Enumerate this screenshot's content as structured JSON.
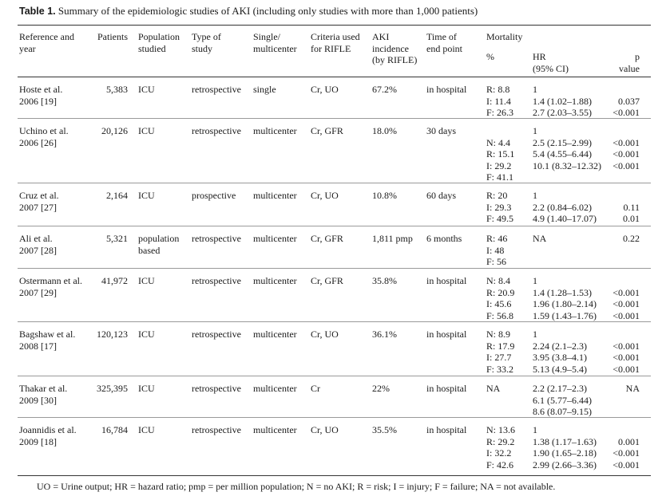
{
  "caption": {
    "label": "Table 1.",
    "text": "Summary of the epidemiologic studies of AKI (including only studies with more than 1,000 patients)"
  },
  "header": {
    "reference": [
      "Reference and",
      "year"
    ],
    "patients": [
      "Patients"
    ],
    "population": [
      "Population",
      "studied"
    ],
    "type": [
      "Type of",
      "study"
    ],
    "single": [
      "Single/",
      "multicenter"
    ],
    "criteria": [
      "Criteria used",
      "for RIFLE"
    ],
    "incidence": [
      "AKI",
      "incidence",
      "(by RIFLE)"
    ],
    "endpoint": [
      "Time of",
      "end point"
    ],
    "mortality": [
      "Mortality"
    ],
    "pct": [
      "%"
    ],
    "hr": [
      "HR",
      "(95% CI)"
    ],
    "pval": [
      "p",
      "value"
    ]
  },
  "rows": [
    {
      "reference": [
        "Hoste et al.",
        "2006 [19]"
      ],
      "patients": [
        "5,383"
      ],
      "population": [
        "ICU"
      ],
      "type": [
        "retrospective"
      ],
      "single": [
        "single"
      ],
      "criteria": [
        "Cr, UO"
      ],
      "incidence": [
        "67.2%"
      ],
      "endpoint": [
        "in hospital"
      ],
      "pct": [
        "R: 8.8",
        "I: 11.4",
        "F: 26.3"
      ],
      "hr": [
        "1",
        "1.4 (1.02–1.88)",
        "2.7 (2.03–3.55)"
      ],
      "pval": [
        "",
        "0.037",
        "<0.001"
      ]
    },
    {
      "reference": [
        "Uchino et al.",
        "2006 [26]"
      ],
      "patients": [
        "20,126"
      ],
      "population": [
        "ICU"
      ],
      "type": [
        "retrospective"
      ],
      "single": [
        "multicenter"
      ],
      "criteria": [
        "Cr, GFR"
      ],
      "incidence": [
        "18.0%"
      ],
      "endpoint": [
        "30 days"
      ],
      "pct": [
        "",
        "N: 4.4",
        "R: 15.1",
        "I: 29.2",
        "F:  41.1"
      ],
      "hr": [
        "1",
        "2.5 (2.15–2.99)",
        "5.4 (4.55–6.44)",
        "10.1 (8.32–12.32)"
      ],
      "pval": [
        "",
        "<0.001",
        "<0.001",
        "<0.001"
      ]
    },
    {
      "reference": [
        "Cruz et al.",
        "2007 [27]"
      ],
      "patients": [
        "2,164"
      ],
      "population": [
        "ICU"
      ],
      "type": [
        "prospective"
      ],
      "single": [
        "multicenter"
      ],
      "criteria": [
        "Cr, UO"
      ],
      "incidence": [
        "10.8%"
      ],
      "endpoint": [
        "60 days"
      ],
      "pct": [
        "R: 20",
        "I: 29.3",
        "F: 49.5"
      ],
      "hr": [
        "1",
        "2.2 (0.84–6.02)",
        "4.9 (1.40–17.07)"
      ],
      "pval": [
        "",
        "0.11",
        "0.01"
      ]
    },
    {
      "reference": [
        "Ali et al.",
        "2007 [28]"
      ],
      "patients": [
        "5,321"
      ],
      "population": [
        "population",
        "based"
      ],
      "type": [
        "retrospective"
      ],
      "single": [
        "multicenter"
      ],
      "criteria": [
        "Cr, GFR"
      ],
      "incidence": [
        "1,811 pmp"
      ],
      "endpoint": [
        "6 months"
      ],
      "pct": [
        "R: 46",
        "I: 48",
        "F: 56"
      ],
      "hr": [
        "NA"
      ],
      "pval": [
        "0.22"
      ]
    },
    {
      "reference": [
        "Ostermann et al.",
        "2007 [29]"
      ],
      "patients": [
        "41,972"
      ],
      "population": [
        "ICU"
      ],
      "type": [
        "retrospective"
      ],
      "single": [
        "multicenter"
      ],
      "criteria": [
        "Cr, GFR"
      ],
      "incidence": [
        "35.8%"
      ],
      "endpoint": [
        "in hospital"
      ],
      "pct": [
        "N: 8.4",
        "R: 20.9",
        "I: 45.6",
        "F: 56.8"
      ],
      "hr": [
        "1",
        "1.4 (1.28–1.53)",
        "1.96 (1.80–2.14)",
        "1.59 (1.43–1.76)"
      ],
      "pval": [
        "",
        "<0.001",
        "<0.001",
        "<0.001"
      ]
    },
    {
      "reference": [
        "Bagshaw et al.",
        "2008 [17]"
      ],
      "patients": [
        "120,123"
      ],
      "population": [
        "ICU"
      ],
      "type": [
        "retrospective"
      ],
      "single": [
        "multicenter"
      ],
      "criteria": [
        "Cr, UO"
      ],
      "incidence": [
        "36.1%"
      ],
      "endpoint": [
        "in hospital"
      ],
      "pct": [
        "N: 8.9",
        "R: 17.9",
        "I: 27.7",
        "F: 33.2"
      ],
      "hr": [
        "1",
        "2.24 (2.1–2.3)",
        "3.95 (3.8–4.1)",
        "5.13 (4.9–5.4)"
      ],
      "pval": [
        "",
        "<0.001",
        "<0.001",
        "<0.001"
      ]
    },
    {
      "reference": [
        "Thakar et al.",
        "2009 [30]"
      ],
      "patients": [
        "325,395"
      ],
      "population": [
        "ICU"
      ],
      "type": [
        "retrospective"
      ],
      "single": [
        "multicenter"
      ],
      "criteria": [
        "Cr"
      ],
      "incidence": [
        "22%"
      ],
      "endpoint": [
        "in hospital"
      ],
      "pct": [
        "NA"
      ],
      "hr": [
        "2.2 (2.17–2.3)",
        "6.1 (5.77–6.44)",
        "8.6 (8.07–9.15)"
      ],
      "pval": [
        "NA"
      ]
    },
    {
      "reference": [
        "Joannidis et al.",
        "2009 [18]"
      ],
      "patients": [
        "16,784"
      ],
      "population": [
        "ICU"
      ],
      "type": [
        "retrospective"
      ],
      "single": [
        "multicenter"
      ],
      "criteria": [
        "Cr, UO"
      ],
      "incidence": [
        "35.5%"
      ],
      "endpoint": [
        "in hospital"
      ],
      "pct": [
        "N: 13.6",
        "R: 29.2",
        "I: 32.2",
        "F: 42.6"
      ],
      "hr": [
        "1",
        "1.38 (1.17–1.63)",
        "1.90 (1.65–2.18)",
        "2.99 (2.66–3.36)"
      ],
      "pval": [
        "",
        "0.001",
        "<0.001",
        "<0.001"
      ]
    }
  ],
  "footnote": "UO = Urine output; HR = hazard ratio; pmp = per million population; N = no AKI; R = risk; I = injury; F = failure; NA = not available."
}
